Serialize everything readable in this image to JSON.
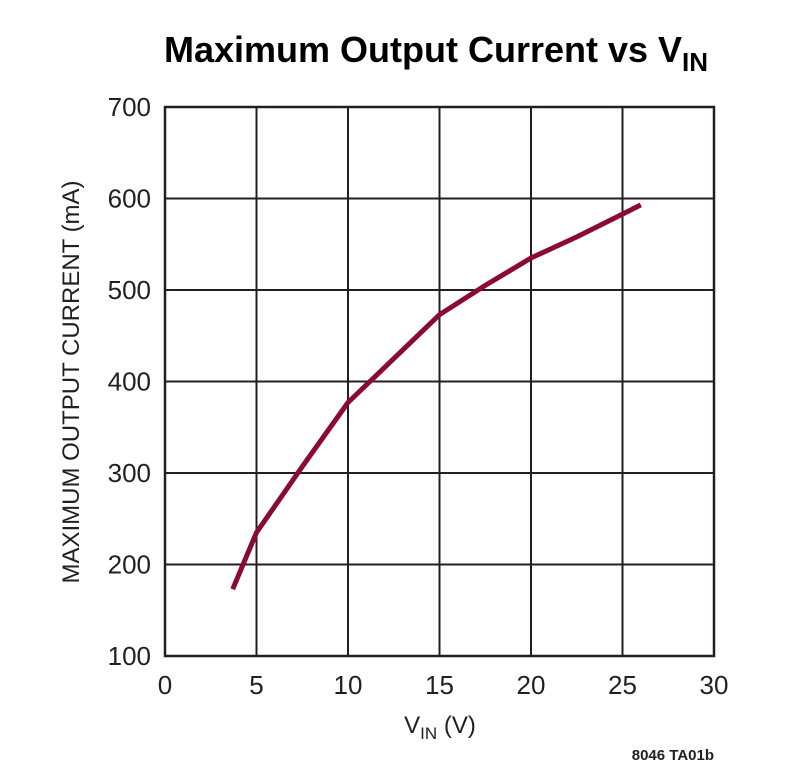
{
  "chart_data": {
    "type": "line",
    "title_main": "Maximum Output Current vs V",
    "title_sub": "IN",
    "xlabel_main": "V",
    "xlabel_sub": "IN",
    "xlabel_unit": " (V)",
    "ylabel": "MAXIMUM OUTPUT CURRENT (mA)",
    "xlim": [
      0,
      30
    ],
    "ylim": [
      100,
      700
    ],
    "xticks": [
      0,
      5,
      10,
      15,
      20,
      25,
      30
    ],
    "yticks": [
      100,
      200,
      300,
      400,
      500,
      600,
      700
    ],
    "grid": true,
    "line_color": "#8b0a32",
    "series": [
      {
        "x": [
          3.7,
          5.0,
          7.5,
          10.0,
          12.5,
          15.0,
          17.5,
          20.0,
          22.5,
          25.0,
          26.0
        ],
        "y": [
          173,
          235,
          307,
          377,
          425,
          473,
          505,
          535,
          558,
          583,
          593
        ]
      }
    ]
  },
  "figure_code": "8046 TA01b"
}
